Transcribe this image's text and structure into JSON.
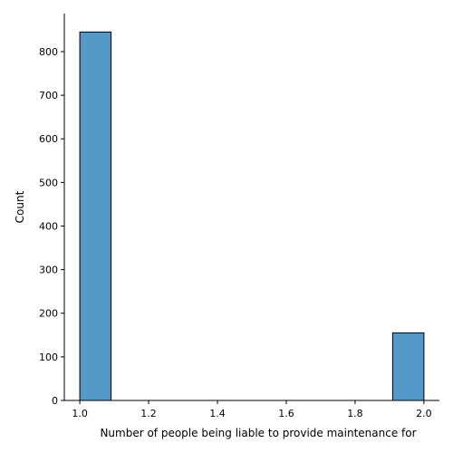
{
  "chart_data": {
    "type": "bar",
    "subtype": "histogram",
    "title": "",
    "xlabel": "Number of people being liable to provide maintenance for",
    "ylabel": "Count",
    "bins": [
      {
        "x0": 1.0,
        "x1": 1.0909,
        "value": 845
      },
      {
        "x0": 1.0909,
        "x1": 1.1818,
        "value": 0
      },
      {
        "x0": 1.1818,
        "x1": 1.2727,
        "value": 0
      },
      {
        "x0": 1.2727,
        "x1": 1.3636,
        "value": 0
      },
      {
        "x0": 1.3636,
        "x1": 1.4545,
        "value": 0
      },
      {
        "x0": 1.4545,
        "x1": 1.5455,
        "value": 0
      },
      {
        "x0": 1.5455,
        "x1": 1.6364,
        "value": 0
      },
      {
        "x0": 1.6364,
        "x1": 1.7273,
        "value": 0
      },
      {
        "x0": 1.7273,
        "x1": 1.8182,
        "value": 0
      },
      {
        "x0": 1.8182,
        "x1": 1.9091,
        "value": 0
      },
      {
        "x0": 1.9091,
        "x1": 2.0,
        "value": 155
      }
    ],
    "xlim": [
      0.955,
      2.045
    ],
    "ylim": [
      0,
      887.25
    ],
    "xticks": [
      {
        "value": 1.0,
        "label": "1.0"
      },
      {
        "value": 1.2,
        "label": "1.2"
      },
      {
        "value": 1.4,
        "label": "1.4"
      },
      {
        "value": 1.6,
        "label": "1.6"
      },
      {
        "value": 1.8,
        "label": "1.8"
      },
      {
        "value": 2.0,
        "label": "2.0"
      }
    ],
    "yticks": [
      {
        "value": 0,
        "label": "0"
      },
      {
        "value": 100,
        "label": "100"
      },
      {
        "value": 200,
        "label": "200"
      },
      {
        "value": 300,
        "label": "300"
      },
      {
        "value": 400,
        "label": "400"
      },
      {
        "value": 500,
        "label": "500"
      },
      {
        "value": 600,
        "label": "600"
      },
      {
        "value": 700,
        "label": "700"
      },
      {
        "value": 800,
        "label": "800"
      }
    ],
    "grid": false,
    "legend": "none",
    "colors": {
      "bar_fill": "#5499c7",
      "bar_edge": "#000000",
      "axis": "#000000"
    }
  }
}
